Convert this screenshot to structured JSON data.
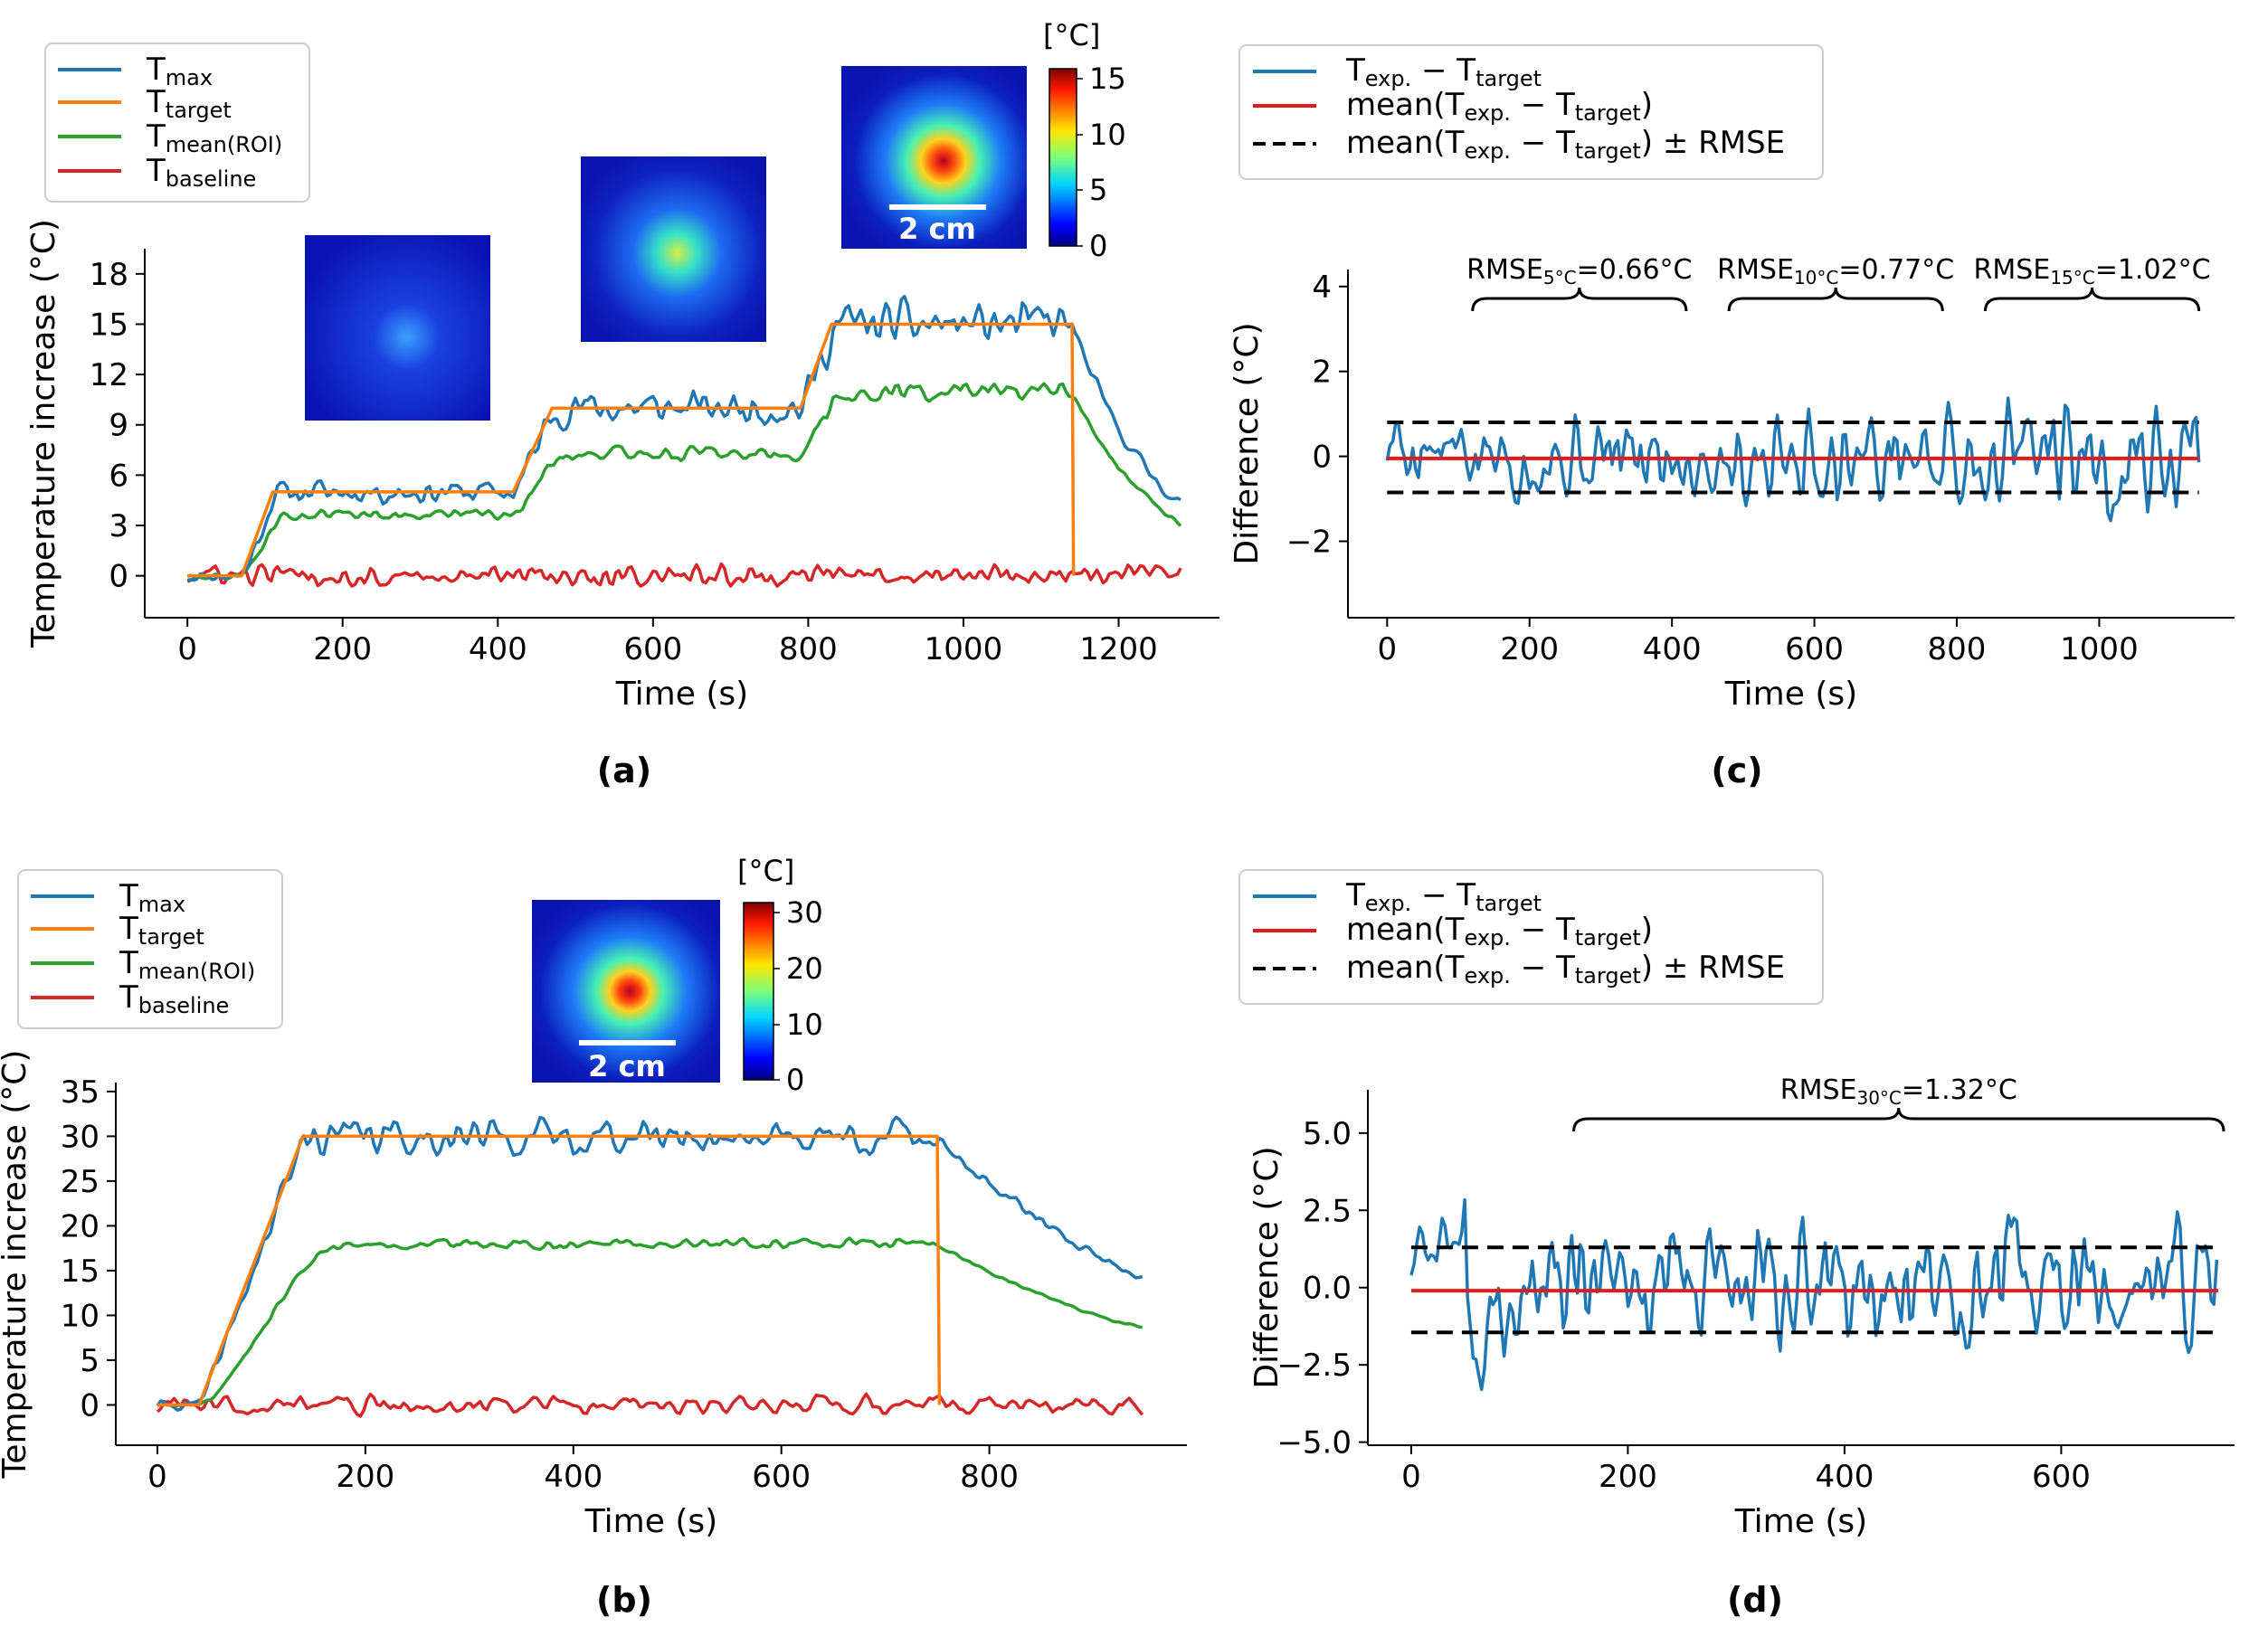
{
  "colors": {
    "tmax": "#1f77b4",
    "ttarget": "#ff7f0e",
    "tmean": "#2ca02c",
    "tbaseline": "#d62728",
    "diff": "#1f77b4",
    "mean_line": "#e41a1c",
    "rmse_band": "#000000"
  },
  "chart_data": [
    {
      "id": "a",
      "type": "line",
      "panel_label": "(a)",
      "xlabel": "Time (s)",
      "ylabel": "Temperature increase (°C)",
      "xlim": [
        -55,
        1330
      ],
      "ylim": [
        -2.5,
        19.5
      ],
      "xticks": [
        0,
        200,
        400,
        600,
        800,
        1000,
        1200
      ],
      "yticks": [
        0,
        3,
        6,
        9,
        12,
        15,
        18
      ],
      "target_profile": [
        [
          0,
          0
        ],
        [
          70,
          0
        ],
        [
          110,
          5
        ],
        [
          420,
          5
        ],
        [
          470,
          10
        ],
        [
          790,
          10
        ],
        [
          830,
          15
        ],
        [
          1140,
          15
        ],
        [
          1142,
          0
        ]
      ],
      "legend": [
        {
          "base": "T",
          "sub": "max",
          "series": "tmax"
        },
        {
          "base": "T",
          "sub": "target",
          "series": "ttarget"
        },
        {
          "base": "T",
          "sub": "mean(ROI)",
          "series": "tmean"
        },
        {
          "base": "T",
          "sub": "baseline",
          "series": "tbaseline"
        }
      ],
      "colorbar": {
        "unit": "[°C]",
        "ticks": [
          "0",
          "5",
          "10",
          "15"
        ]
      },
      "scale_bar": "2 cm"
    },
    {
      "id": "b",
      "type": "line",
      "panel_label": "(b)",
      "xlabel": "Time (s)",
      "ylabel": "Temperature increase (°C)",
      "xlim": [
        -40,
        990
      ],
      "ylim": [
        -4.5,
        36
      ],
      "xticks": [
        0,
        200,
        400,
        600,
        800
      ],
      "yticks": [
        0,
        5,
        10,
        15,
        20,
        25,
        30,
        35
      ],
      "target_profile": [
        [
          0,
          0
        ],
        [
          40,
          0
        ],
        [
          140,
          30
        ],
        [
          750,
          30
        ],
        [
          752,
          0
        ]
      ],
      "legend": [
        {
          "base": "T",
          "sub": "max",
          "series": "tmax"
        },
        {
          "base": "T",
          "sub": "target",
          "series": "ttarget"
        },
        {
          "base": "T",
          "sub": "mean(ROI)",
          "series": "tmean"
        },
        {
          "base": "T",
          "sub": "baseline",
          "series": "tbaseline"
        }
      ],
      "colorbar": {
        "unit": "[°C]",
        "ticks": [
          "0",
          "10",
          "20",
          "30"
        ]
      },
      "scale_bar": "2 cm"
    },
    {
      "id": "c",
      "type": "line",
      "panel_label": "(c)",
      "xlabel": "Time (s)",
      "ylabel": "Difference (°C)",
      "xlim": [
        -55,
        1190
      ],
      "ylim": [
        -3.8,
        4.4
      ],
      "xticks": [
        0,
        200,
        400,
        600,
        800,
        1000
      ],
      "yticks": [
        -2,
        0,
        2,
        4
      ],
      "mean": -0.05,
      "rmse_band": [
        -0.85,
        0.8
      ],
      "legend": [
        {
          "text": "T_exp. − T_target",
          "series": "diff",
          "style": "solid"
        },
        {
          "text": "mean(T_exp. − T_target)",
          "series": "mean_line",
          "style": "solid"
        },
        {
          "text": "mean(T_exp. − T_target) ± RMSE",
          "series": "rmse_band",
          "style": "dashed"
        }
      ],
      "annotations": [
        {
          "label": "RMSE",
          "sub": "5°C",
          "value": "=0.66°C",
          "x_from": 120,
          "x_to": 420
        },
        {
          "label": "RMSE",
          "sub": "10°C",
          "value": "=0.77°C",
          "x_from": 480,
          "x_to": 780
        },
        {
          "label": "RMSE",
          "sub": "15°C",
          "value": "=1.02°C",
          "x_from": 840,
          "x_to": 1140
        }
      ]
    },
    {
      "id": "d",
      "type": "line",
      "panel_label": "(d)",
      "xlabel": "Time (s)",
      "ylabel": "Difference (°C)",
      "xlim": [
        -40,
        760
      ],
      "ylim": [
        -5.1,
        6.4
      ],
      "xticks": [
        0,
        200,
        400,
        600
      ],
      "yticks": [
        -5.0,
        -2.5,
        0.0,
        2.5,
        5.0
      ],
      "mean": -0.1,
      "rmse_band": [
        -1.45,
        1.3
      ],
      "legend": [
        {
          "text": "T_exp. − T_target",
          "series": "diff",
          "style": "solid"
        },
        {
          "text": "mean(T_exp. − T_target)",
          "series": "mean_line",
          "style": "solid"
        },
        {
          "text": "mean(T_exp. − T_target) ± RMSE",
          "series": "rmse_band",
          "style": "dashed"
        }
      ],
      "annotations": [
        {
          "label": "RMSE",
          "sub": "30°C",
          "value": "=1.32°C",
          "x_from": 150,
          "x_to": 750
        }
      ]
    }
  ]
}
